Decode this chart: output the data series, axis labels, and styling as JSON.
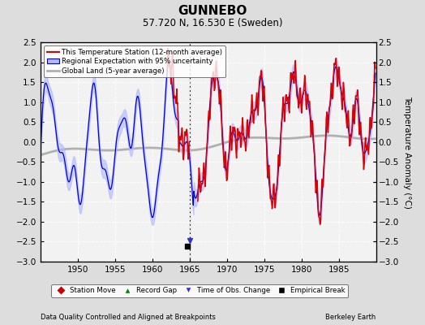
{
  "title": "GUNNEBO",
  "subtitle": "57.720 N, 16.530 E (Sweden)",
  "ylabel": "Temperature Anomaly (°C)",
  "xlim": [
    1945,
    1990
  ],
  "ylim": [
    -3,
    2.5
  ],
  "yticks": [
    -3,
    -2.5,
    -2,
    -1.5,
    -1,
    -0.5,
    0,
    0.5,
    1,
    1.5,
    2,
    2.5
  ],
  "xticks": [
    1950,
    1955,
    1960,
    1965,
    1970,
    1975,
    1980,
    1985
  ],
  "bg_color": "#e0e0e0",
  "plot_bg_color": "#f5f5f5",
  "grid_color": "#ffffff",
  "station_color": "#dd0000",
  "regional_color": "#0000cc",
  "regional_fill_color": "#b0b8ff",
  "global_color": "#b0b0b0",
  "footer_left": "Data Quality Controlled and Aligned at Breakpoints",
  "footer_right": "Berkeley Earth",
  "legend_entries": [
    "This Temperature Station (12-month average)",
    "Regional Expectation with 95% uncertainty",
    "Global Land (5-year average)"
  ],
  "marker_legend": [
    "Station Move",
    "Record Gap",
    "Time of Obs. Change",
    "Empirical Break"
  ],
  "empirical_break_x": 1964.75,
  "empirical_break_y": -2.62,
  "time_obs_change_x": 1965.0,
  "vline_x": 1965.0
}
